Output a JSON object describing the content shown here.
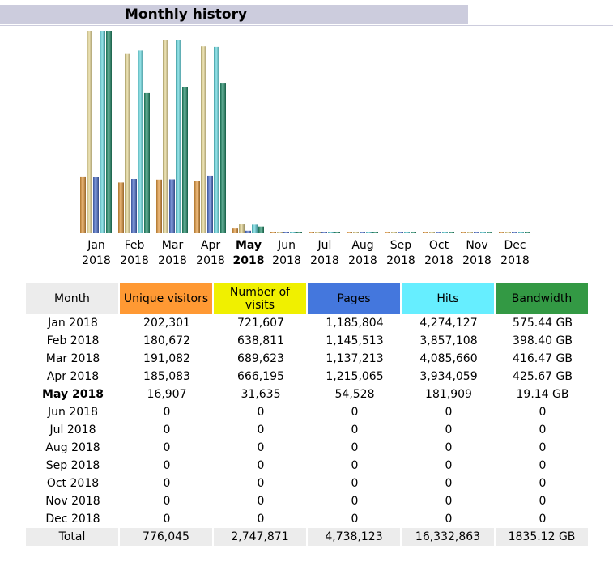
{
  "title": "Monthly history",
  "colors": {
    "visitors": "#ff9933",
    "visits": "#f0f000",
    "pages": "#4477dd",
    "hits": "#66eeff",
    "bandwidth": "#339944",
    "header_gray": "#ececec",
    "title_bar": "#ccccdd"
  },
  "table": {
    "headers": [
      "Month",
      "Unique visitors",
      "Number of visits",
      "Pages",
      "Hits",
      "Bandwidth"
    ],
    "rows": [
      [
        "Jan 2018",
        "202,301",
        "721,607",
        "1,185,804",
        "4,274,127",
        "575.44 GB"
      ],
      [
        "Feb 2018",
        "180,672",
        "638,811",
        "1,145,513",
        "3,857,108",
        "398.40 GB"
      ],
      [
        "Mar 2018",
        "191,082",
        "689,623",
        "1,137,213",
        "4,085,660",
        "416.47 GB"
      ],
      [
        "Apr 2018",
        "185,083",
        "666,195",
        "1,215,065",
        "3,934,059",
        "425.67 GB"
      ],
      [
        "May 2018",
        "16,907",
        "31,635",
        "54,528",
        "181,909",
        "19.14 GB"
      ],
      [
        "Jun 2018",
        "0",
        "0",
        "0",
        "0",
        "0"
      ],
      [
        "Jul 2018",
        "0",
        "0",
        "0",
        "0",
        "0"
      ],
      [
        "Aug 2018",
        "0",
        "0",
        "0",
        "0",
        "0"
      ],
      [
        "Sep 2018",
        "0",
        "0",
        "0",
        "0",
        "0"
      ],
      [
        "Oct 2018",
        "0",
        "0",
        "0",
        "0",
        "0"
      ],
      [
        "Nov 2018",
        "0",
        "0",
        "0",
        "0",
        "0"
      ],
      [
        "Dec 2018",
        "0",
        "0",
        "0",
        "0",
        "0"
      ]
    ],
    "current_row": 4,
    "total": [
      "Total",
      "776,045",
      "2,747,871",
      "4,738,123",
      "16,332,863",
      "1835.12 GB"
    ]
  },
  "chart_data": {
    "type": "bar",
    "categories": [
      [
        "Jan",
        "2018"
      ],
      [
        "Feb",
        "2018"
      ],
      [
        "Mar",
        "2018"
      ],
      [
        "Apr",
        "2018"
      ],
      [
        "May",
        "2018"
      ],
      [
        "Jun",
        "2018"
      ],
      [
        "Jul",
        "2018"
      ],
      [
        "Aug",
        "2018"
      ],
      [
        "Sep",
        "2018"
      ],
      [
        "Oct",
        "2018"
      ],
      [
        "Nov",
        "2018"
      ],
      [
        "Dec",
        "2018"
      ]
    ],
    "current_index": 4,
    "series": [
      {
        "name": "Unique visitors",
        "color": "#e89a3a",
        "values": [
          202301,
          180672,
          191082,
          185083,
          16907,
          0,
          0,
          0,
          0,
          0,
          0,
          0
        ]
      },
      {
        "name": "Number of visits",
        "color": "#e8d890",
        "values": [
          721607,
          638811,
          689623,
          666195,
          31635,
          0,
          0,
          0,
          0,
          0,
          0,
          0
        ]
      },
      {
        "name": "Pages",
        "color": "#4a6fd0",
        "values": [
          1185804,
          1145513,
          1137213,
          1215065,
          54528,
          0,
          0,
          0,
          0,
          0,
          0,
          0
        ]
      },
      {
        "name": "Hits",
        "color": "#5fd8e0",
        "values": [
          4274127,
          3857108,
          4085660,
          3934059,
          181909,
          0,
          0,
          0,
          0,
          0,
          0,
          0
        ]
      },
      {
        "name": "Bandwidth",
        "color": "#1f8f6a",
        "values": [
          575.44,
          398.4,
          416.47,
          425.67,
          19.14,
          0,
          0,
          0,
          0,
          0,
          0,
          0
        ]
      }
    ],
    "scale_groups": [
      [
        0,
        1
      ],
      [
        2,
        3
      ],
      [
        4
      ]
    ]
  }
}
